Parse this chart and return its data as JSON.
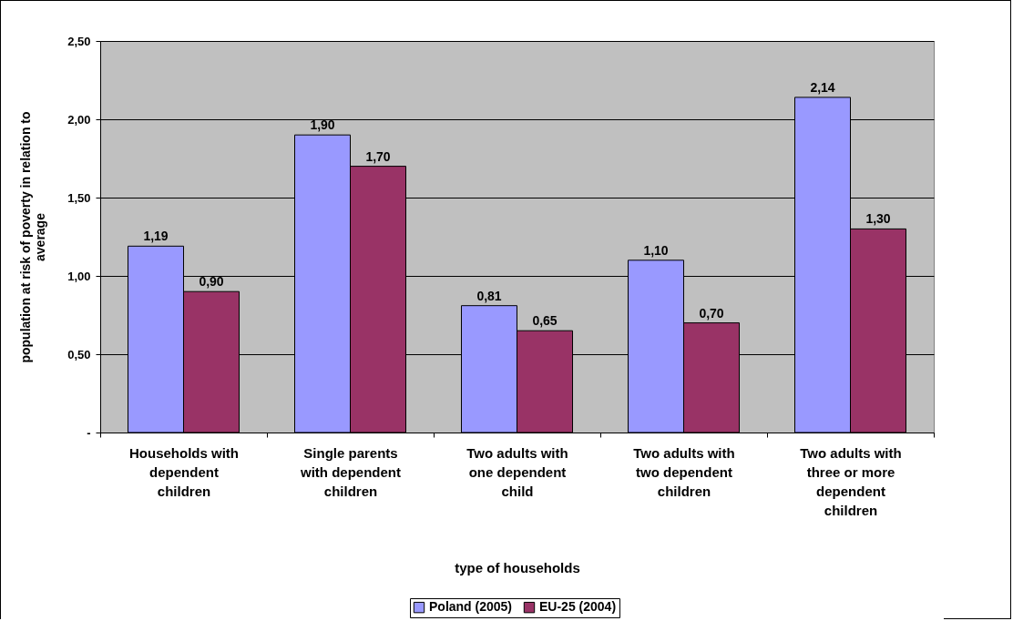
{
  "chart_data": {
    "type": "bar",
    "xlabel": "type of households",
    "ylabel": "population at risk of poverty in relation to average",
    "categories": [
      "Households with dependent children",
      "Single parents with dependent children",
      "Two adults with one dependent child",
      "Two adults with two dependent children",
      "Two adults with three or more dependent children"
    ],
    "series": [
      {
        "name": "Poland (2005)",
        "color": "#9999ff",
        "values": [
          1.19,
          1.9,
          0.81,
          1.1,
          2.14
        ],
        "value_labels": [
          "1,19",
          "1,90",
          "0,81",
          "1,10",
          "2,14"
        ]
      },
      {
        "name": "EU-25 (2004)",
        "color": "#993366",
        "values": [
          0.9,
          1.7,
          0.65,
          0.7,
          1.3
        ],
        "value_labels": [
          "0,90",
          "1,70",
          "0,65",
          "0,70",
          "1,30"
        ]
      }
    ],
    "ylim": [
      0,
      2.5
    ],
    "yticks": [
      {
        "value": 0,
        "label": "-"
      },
      {
        "value": 0.5,
        "label": "0,50"
      },
      {
        "value": 1,
        "label": "1,00"
      },
      {
        "value": 1.5,
        "label": "1,50"
      },
      {
        "value": 2,
        "label": "2,00"
      },
      {
        "value": 2.5,
        "label": "2,50"
      }
    ],
    "grid": "y",
    "legend": "bottom"
  }
}
